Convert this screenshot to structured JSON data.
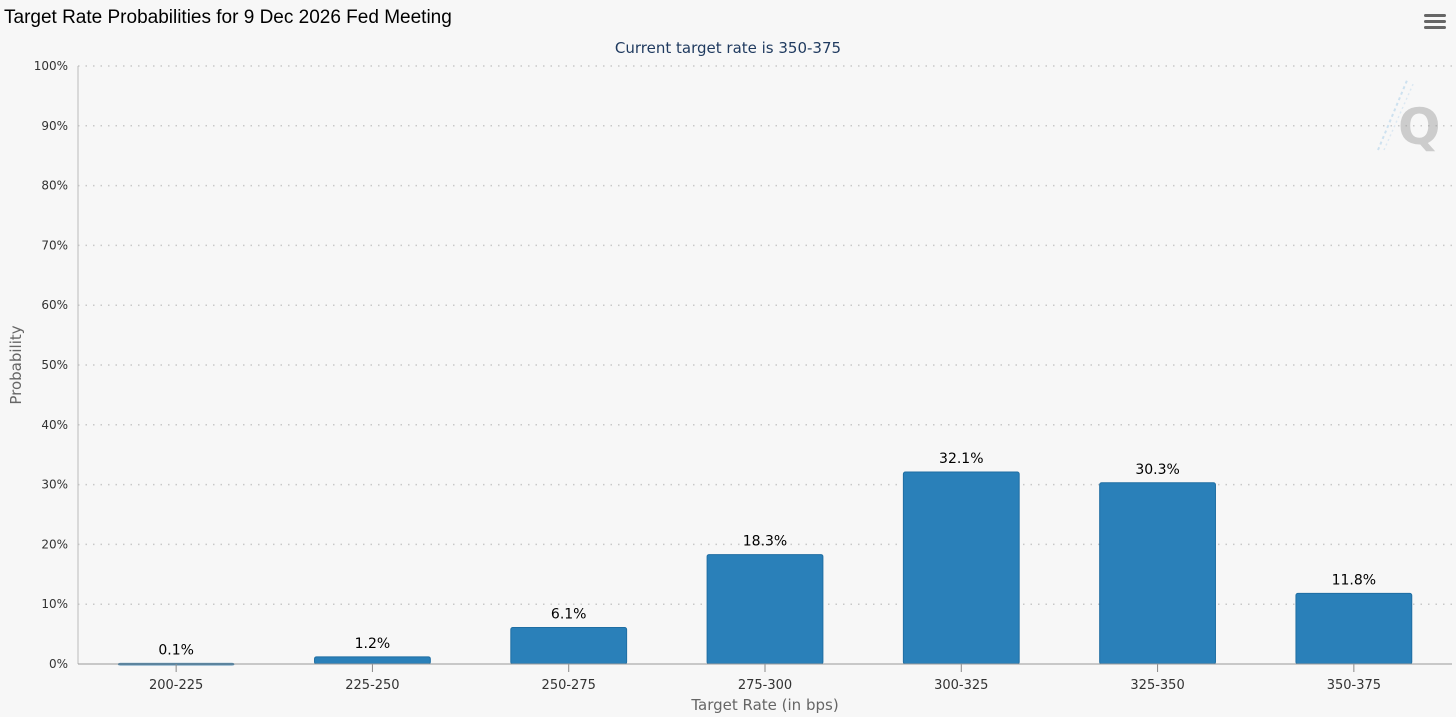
{
  "header": {
    "title": "Target Rate Probabilities for 9 Dec 2026 Fed Meeting",
    "menu_icon": "hamburger-menu-icon",
    "logo_icon": "q-watermark-icon"
  },
  "colors": {
    "bar": "#2a80b9",
    "bar_border": "#1f6ea3",
    "grid": "#c8c8c8",
    "background": "#f7f7f7"
  },
  "chart_data": {
    "type": "bar",
    "title": "Target Rate Probabilities for 9 Dec 2026 Fed Meeting",
    "subtitle": "Current target rate is 350-375",
    "xlabel": "Target Rate (in bps)",
    "ylabel": "Probability",
    "ylim": [
      0,
      100
    ],
    "yticks": [
      0,
      10,
      20,
      30,
      40,
      50,
      60,
      70,
      80,
      90,
      100
    ],
    "ytick_labels": [
      "0%",
      "10%",
      "20%",
      "30%",
      "40%",
      "50%",
      "60%",
      "70%",
      "80%",
      "90%",
      "100%"
    ],
    "categories": [
      "200-225",
      "225-250",
      "250-275",
      "275-300",
      "300-325",
      "325-350",
      "350-375"
    ],
    "values": [
      0.1,
      1.2,
      6.1,
      18.3,
      32.1,
      30.3,
      11.8
    ],
    "data_labels": [
      "0.1%",
      "1.2%",
      "6.1%",
      "18.3%",
      "32.1%",
      "30.3%",
      "11.8%"
    ],
    "grid": true,
    "grid_style": "dotted",
    "legend": "none"
  }
}
